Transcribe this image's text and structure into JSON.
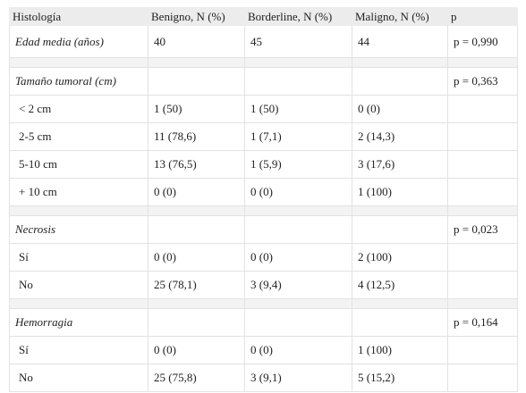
{
  "header": [
    "Histología",
    "Benigno, N (%)",
    "Borderline, N (%)",
    "Maligno, N (%)",
    "p"
  ],
  "groups": [
    {
      "title": "Edad media (años)",
      "values": [
        "40",
        "45",
        "44"
      ],
      "p": "p = 0,990"
    },
    {
      "title": "Tamaño tumoral (cm)",
      "p": "p = 0,363",
      "rows": [
        {
          "label": "< 2 cm",
          "values": [
            "1 (50)",
            "1 (50)",
            "0 (0)"
          ]
        },
        {
          "label": "2-5 cm",
          "values": [
            "11 (78,6)",
            "1 (7,1)",
            "2 (14,3)"
          ]
        },
        {
          "label": "5-10 cm",
          "values": [
            "13 (76,5)",
            "1 (5,9)",
            "3 (17,6)"
          ]
        },
        {
          "label": "+ 10 cm",
          "values": [
            "0 (0)",
            "0 (0)",
            "1 (100)"
          ]
        }
      ]
    },
    {
      "title": "Necrosis",
      "p": "p = 0,023",
      "rows": [
        {
          "label": "Sí",
          "values": [
            "0 (0)",
            "0 (0)",
            "2 (100)"
          ]
        },
        {
          "label": "No",
          "values": [
            "25 (78,1)",
            "3 (9,4)",
            "4 (12,5)"
          ]
        }
      ]
    },
    {
      "title": "Hemorragia",
      "p": "p = 0,164",
      "rows": [
        {
          "label": "Sí",
          "values": [
            "0 (0)",
            "0 (0)",
            "1 (100)"
          ]
        },
        {
          "label": "No",
          "values": [
            "25 (75,8)",
            "3 (9,1)",
            "5 (15,2)"
          ]
        }
      ]
    }
  ]
}
